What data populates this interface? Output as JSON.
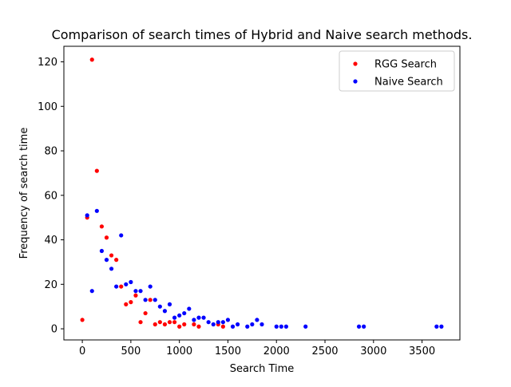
{
  "chart_data": {
    "type": "scatter",
    "title": "Comparison of search times of Hybrid and Naive search methods.",
    "xlabel": "Search Time",
    "ylabel": "Frequency of search time",
    "xlim": [
      -190,
      3890
    ],
    "ylim": [
      -5,
      127
    ],
    "xticks": [
      0,
      500,
      1000,
      1500,
      2000,
      2500,
      3000,
      3500
    ],
    "yticks": [
      0,
      20,
      40,
      60,
      80,
      100,
      120
    ],
    "grid": false,
    "legend_position": "top-right",
    "series": [
      {
        "name": "RGG Search",
        "color": "#ff0000",
        "points": [
          [
            0,
            4
          ],
          [
            50,
            50
          ],
          [
            100,
            121
          ],
          [
            150,
            71
          ],
          [
            200,
            46
          ],
          [
            250,
            41
          ],
          [
            300,
            33
          ],
          [
            350,
            31
          ],
          [
            400,
            19
          ],
          [
            450,
            11
          ],
          [
            500,
            12
          ],
          [
            550,
            15
          ],
          [
            600,
            3
          ],
          [
            650,
            7
          ],
          [
            700,
            13
          ],
          [
            750,
            2
          ],
          [
            800,
            3
          ],
          [
            850,
            2
          ],
          [
            900,
            3
          ],
          [
            950,
            3
          ],
          [
            1000,
            1
          ],
          [
            1050,
            2
          ],
          [
            1150,
            2
          ],
          [
            1200,
            1
          ],
          [
            1400,
            2
          ],
          [
            1450,
            1
          ]
        ]
      },
      {
        "name": "Naive Search",
        "color": "#0000ff",
        "points": [
          [
            50,
            51
          ],
          [
            100,
            17
          ],
          [
            150,
            53
          ],
          [
            200,
            35
          ],
          [
            250,
            31
          ],
          [
            300,
            27
          ],
          [
            350,
            19
          ],
          [
            400,
            42
          ],
          [
            450,
            20
          ],
          [
            500,
            21
          ],
          [
            550,
            17
          ],
          [
            600,
            17
          ],
          [
            650,
            13
          ],
          [
            700,
            19
          ],
          [
            750,
            13
          ],
          [
            800,
            10
          ],
          [
            850,
            8
          ],
          [
            900,
            11
          ],
          [
            950,
            5
          ],
          [
            1000,
            6
          ],
          [
            1050,
            7
          ],
          [
            1100,
            9
          ],
          [
            1150,
            4
          ],
          [
            1200,
            5
          ],
          [
            1250,
            5
          ],
          [
            1300,
            3
          ],
          [
            1350,
            2
          ],
          [
            1400,
            3
          ],
          [
            1450,
            3
          ],
          [
            1500,
            4
          ],
          [
            1550,
            1
          ],
          [
            1600,
            2
          ],
          [
            1700,
            1
          ],
          [
            1750,
            2
          ],
          [
            1800,
            4
          ],
          [
            1850,
            2
          ],
          [
            2000,
            1
          ],
          [
            2050,
            1
          ],
          [
            2100,
            1
          ],
          [
            2300,
            1
          ],
          [
            2850,
            1
          ],
          [
            2900,
            1
          ],
          [
            3650,
            1
          ],
          [
            3700,
            1
          ]
        ]
      }
    ]
  }
}
